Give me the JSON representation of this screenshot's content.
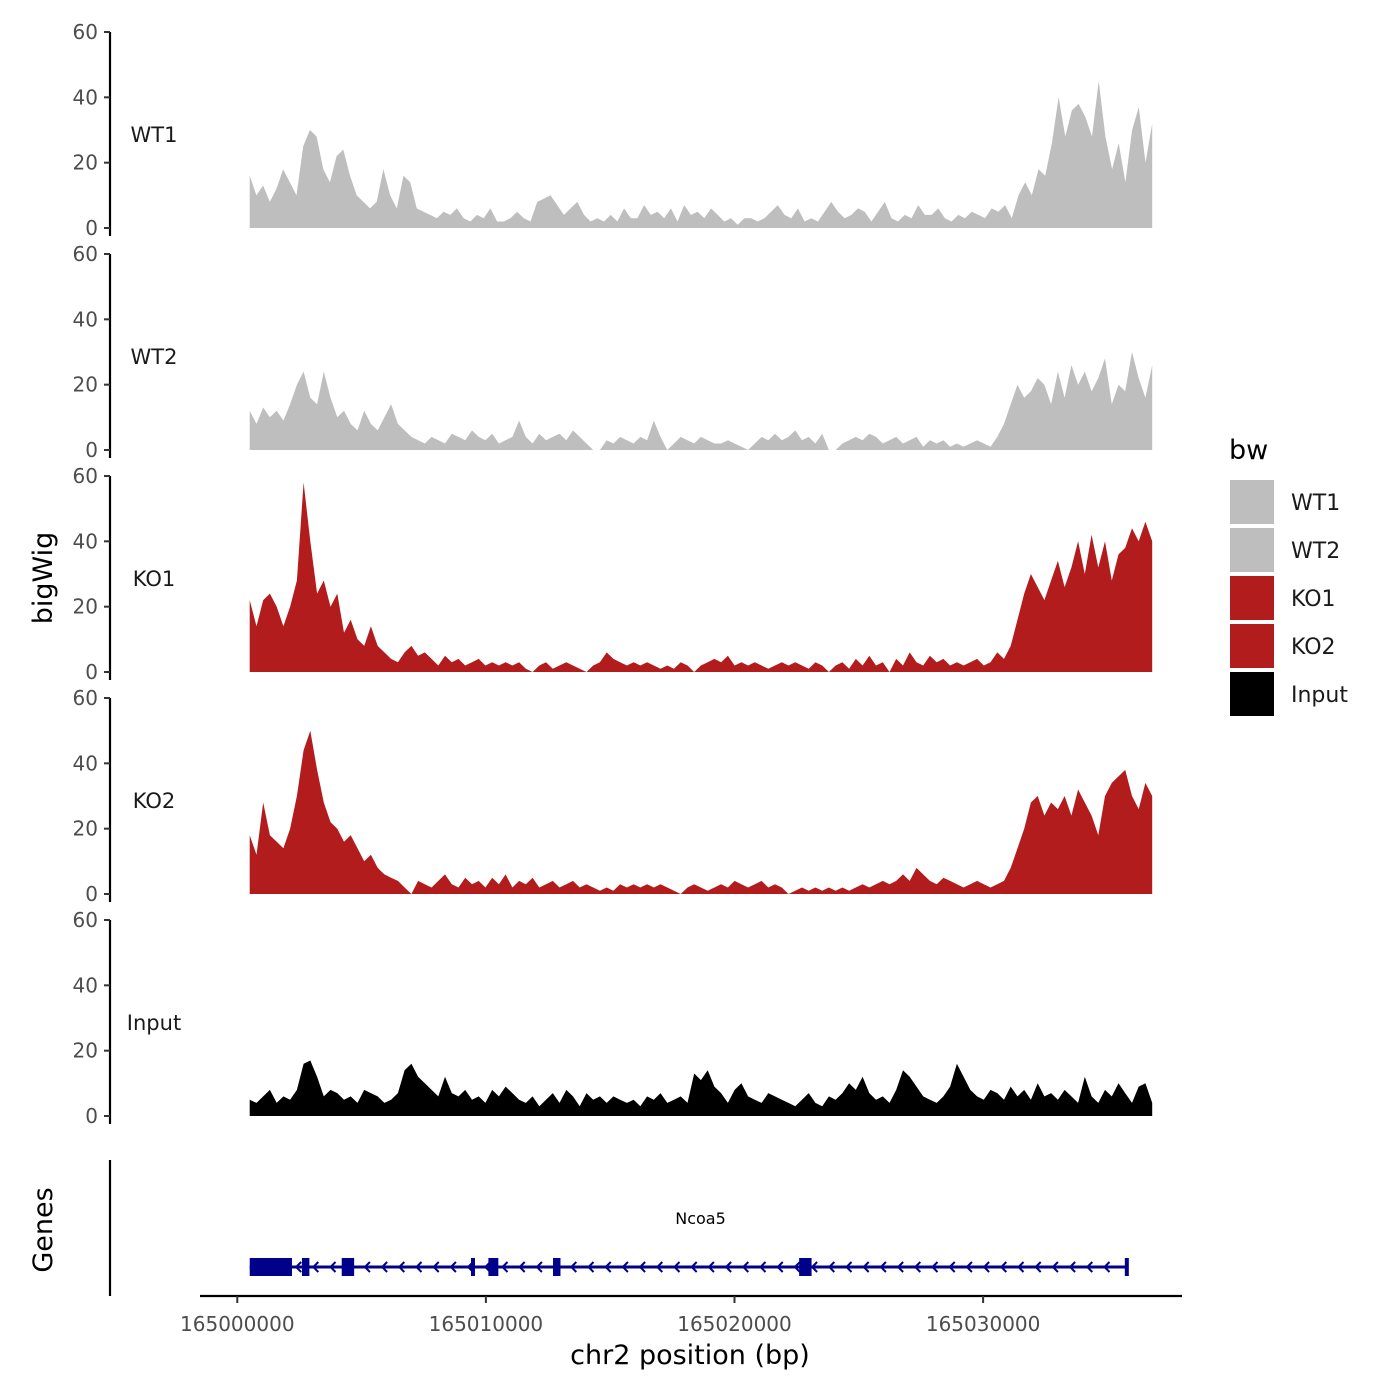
{
  "chart_data": {
    "type": "area",
    "title": "",
    "xlabel": "chr2 position (bp)",
    "ylabel": "bigWig",
    "genes_label": "Genes",
    "x_range": [
      164998500,
      165038000
    ],
    "data_x_range": [
      165000500,
      165036800
    ],
    "x_ticks": [
      {
        "value": 165000000,
        "label": "165000000"
      },
      {
        "value": 165010000,
        "label": "165010000"
      },
      {
        "value": 165020000,
        "label": "165020000"
      },
      {
        "value": 165030000,
        "label": "165030000"
      }
    ],
    "ylim": [
      0,
      60
    ],
    "y_ticks": [
      {
        "value": 0,
        "label": "0"
      },
      {
        "value": 20,
        "label": "20"
      },
      {
        "value": 40,
        "label": "40"
      },
      {
        "value": 60,
        "label": "60"
      }
    ],
    "legend": {
      "title": "bw",
      "position": "right",
      "entries": [
        {
          "label": "WT1",
          "color": "#bebebe"
        },
        {
          "label": "WT2",
          "color": "#bebebe"
        },
        {
          "label": "KO1",
          "color": "#b21c1c"
        },
        {
          "label": "KO2",
          "color": "#b21c1c"
        },
        {
          "label": "Input",
          "color": "#000000"
        }
      ]
    },
    "series": [
      {
        "name": "WT1",
        "color": "#bebebe",
        "values": [
          16,
          10,
          13,
          8,
          12,
          18,
          14,
          10,
          25,
          30,
          28,
          18,
          14,
          22,
          24,
          16,
          10,
          8,
          6,
          8,
          18,
          10,
          6,
          16,
          14,
          6,
          5,
          4,
          3,
          5,
          4,
          6,
          3,
          2,
          4,
          3,
          6,
          2,
          2,
          3,
          5,
          3,
          2,
          8,
          9,
          10,
          7,
          4,
          6,
          8,
          4,
          2,
          3,
          2,
          4,
          2,
          6,
          3,
          3,
          7,
          4,
          5,
          3,
          6,
          2,
          7,
          4,
          5,
          3,
          6,
          4,
          2,
          3,
          1,
          3,
          3,
          2,
          3,
          5,
          7,
          4,
          3,
          6,
          2,
          3,
          2,
          5,
          8,
          5,
          3,
          4,
          6,
          5,
          2,
          5,
          8,
          3,
          2,
          4,
          3,
          7,
          4,
          4,
          6,
          3,
          2,
          4,
          3,
          5,
          4,
          3,
          6,
          5,
          7,
          3,
          10,
          14,
          10,
          18,
          16,
          26,
          40,
          28,
          36,
          38,
          34,
          28,
          45,
          28,
          18,
          26,
          14,
          30,
          37,
          20,
          32
        ]
      },
      {
        "name": "WT2",
        "color": "#bebebe",
        "values": [
          12,
          8,
          13,
          10,
          12,
          9,
          14,
          20,
          24,
          16,
          14,
          24,
          16,
          10,
          12,
          8,
          6,
          12,
          8,
          6,
          10,
          14,
          8,
          6,
          4,
          3,
          2,
          4,
          3,
          2,
          5,
          4,
          3,
          6,
          4,
          3,
          5,
          2,
          3,
          4,
          9,
          4,
          2,
          5,
          3,
          4,
          5,
          3,
          6,
          4,
          2,
          0,
          0,
          3,
          2,
          4,
          3,
          2,
          4,
          3,
          9,
          4,
          0,
          2,
          4,
          3,
          2,
          4,
          3,
          2,
          2,
          3,
          2,
          1,
          0,
          2,
          4,
          3,
          5,
          3,
          4,
          6,
          3,
          4,
          2,
          5,
          0,
          0,
          2,
          3,
          4,
          3,
          5,
          4,
          2,
          3,
          4,
          2,
          3,
          4,
          1,
          3,
          2,
          3,
          1,
          2,
          1,
          2,
          3,
          2,
          1,
          4,
          8,
          14,
          20,
          16,
          18,
          22,
          20,
          14,
          24,
          16,
          26,
          20,
          24,
          18,
          22,
          28,
          14,
          20,
          18,
          30,
          22,
          16,
          26
        ]
      },
      {
        "name": "KO1",
        "color": "#b21c1c",
        "values": [
          22,
          14,
          22,
          24,
          20,
          14,
          20,
          28,
          58,
          40,
          24,
          28,
          20,
          24,
          12,
          16,
          10,
          8,
          14,
          8,
          6,
          4,
          3,
          6,
          8,
          5,
          6,
          4,
          2,
          5,
          3,
          4,
          2,
          3,
          4,
          2,
          3,
          2,
          3,
          2,
          3,
          1,
          0,
          2,
          3,
          1,
          2,
          3,
          2,
          1,
          0,
          2,
          3,
          6,
          4,
          3,
          2,
          3,
          2,
          3,
          2,
          1,
          2,
          1,
          3,
          2,
          0,
          2,
          3,
          4,
          3,
          5,
          2,
          3,
          2,
          3,
          2,
          1,
          2,
          3,
          2,
          3,
          2,
          1,
          3,
          2,
          0,
          2,
          3,
          1,
          4,
          2,
          5,
          2,
          3,
          0,
          4,
          2,
          6,
          3,
          2,
          5,
          3,
          4,
          2,
          3,
          2,
          3,
          4,
          2,
          3,
          6,
          4,
          8,
          16,
          24,
          30,
          26,
          22,
          28,
          34,
          26,
          32,
          40,
          30,
          42,
          32,
          40,
          28,
          36,
          38,
          44,
          40,
          46,
          40
        ]
      },
      {
        "name": "KO2",
        "color": "#b21c1c",
        "values": [
          18,
          12,
          28,
          18,
          16,
          14,
          20,
          30,
          44,
          50,
          38,
          28,
          22,
          20,
          16,
          18,
          14,
          10,
          12,
          8,
          6,
          5,
          4,
          2,
          0,
          4,
          3,
          2,
          4,
          6,
          3,
          2,
          5,
          3,
          4,
          2,
          5,
          3,
          6,
          2,
          4,
          3,
          5,
          2,
          3,
          4,
          2,
          3,
          4,
          2,
          3,
          2,
          1,
          2,
          1,
          3,
          2,
          3,
          2,
          3,
          2,
          3,
          2,
          1,
          0,
          2,
          3,
          2,
          1,
          2,
          3,
          2,
          4,
          3,
          2,
          3,
          4,
          2,
          3,
          2,
          0,
          1,
          2,
          1,
          2,
          1,
          2,
          1,
          2,
          1,
          2,
          3,
          2,
          3,
          4,
          3,
          4,
          6,
          4,
          8,
          6,
          4,
          3,
          5,
          4,
          3,
          2,
          3,
          4,
          3,
          2,
          3,
          4,
          8,
          14,
          20,
          28,
          30,
          24,
          28,
          26,
          30,
          24,
          32,
          28,
          24,
          18,
          30,
          34,
          36,
          38,
          30,
          26,
          34,
          30
        ]
      },
      {
        "name": "Input",
        "color": "#000000",
        "values": [
          5,
          4,
          6,
          8,
          4,
          6,
          5,
          8,
          16,
          17,
          12,
          6,
          8,
          7,
          5,
          6,
          4,
          8,
          7,
          6,
          4,
          5,
          7,
          14,
          16,
          12,
          10,
          8,
          6,
          12,
          7,
          6,
          8,
          5,
          6,
          4,
          8,
          6,
          9,
          7,
          5,
          4,
          6,
          3,
          5,
          7,
          4,
          8,
          6,
          3,
          7,
          5,
          6,
          4,
          6,
          5,
          4,
          5,
          3,
          6,
          5,
          7,
          4,
          5,
          6,
          4,
          13,
          11,
          14,
          9,
          7,
          4,
          8,
          10,
          6,
          5,
          4,
          7,
          6,
          5,
          4,
          3,
          5,
          7,
          4,
          3,
          6,
          5,
          7,
          10,
          8,
          12,
          7,
          5,
          6,
          4,
          8,
          14,
          12,
          9,
          6,
          5,
          4,
          6,
          9,
          16,
          12,
          8,
          6,
          5,
          8,
          7,
          5,
          9,
          6,
          8,
          5,
          10,
          6,
          7,
          5,
          8,
          6,
          4,
          12,
          6,
          4,
          8,
          6,
          10,
          7,
          4,
          9,
          10,
          4
        ]
      }
    ],
    "gene_track": {
      "name": "Ncoa5",
      "color": "#00008b",
      "strand": "minus",
      "start": 165000500,
      "end": 165035800,
      "exons": [
        [
          165000500,
          165002200
        ],
        [
          165002600,
          165002900
        ],
        [
          165004200,
          165004700
        ],
        [
          165009400,
          165009500
        ],
        [
          165010100,
          165010500
        ],
        [
          165012700,
          165013000
        ],
        [
          165022600,
          165023100
        ],
        [
          165035700,
          165035800
        ]
      ]
    }
  }
}
